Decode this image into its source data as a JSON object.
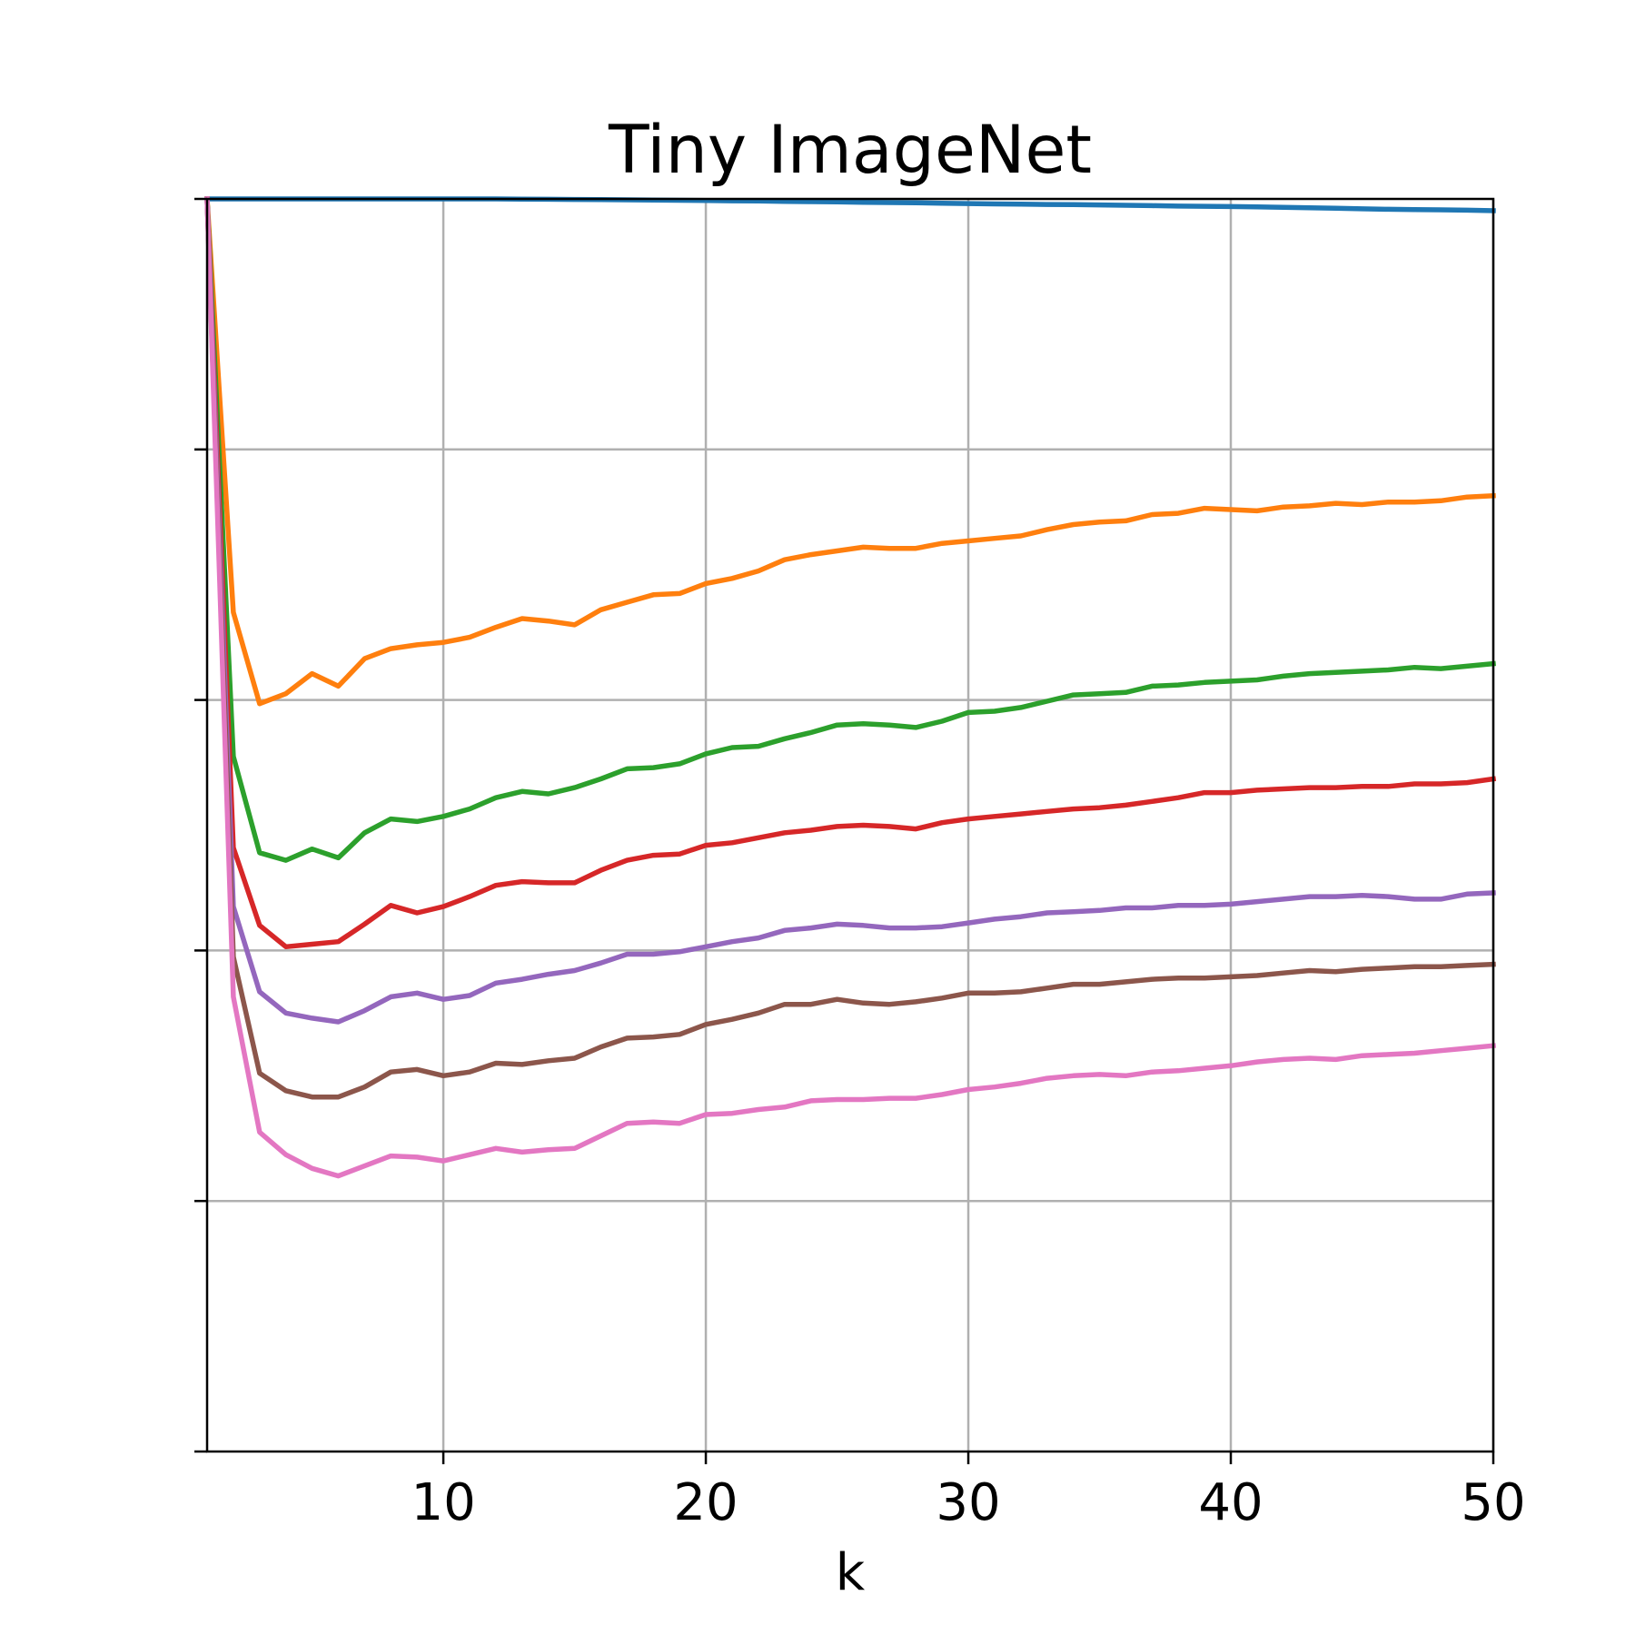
{
  "chart_data": {
    "type": "line",
    "title": "Tiny ImageNet",
    "xlabel": "k",
    "ylabel": "",
    "xlim": [
      1,
      50
    ],
    "ylim": [
      0,
      1
    ],
    "x_ticks": [
      10,
      20,
      30,
      40,
      50
    ],
    "y_ticks": [
      0,
      0.2,
      0.4,
      0.6,
      0.8,
      1.0
    ],
    "y_tick_labels_visible": false,
    "grid": true,
    "x": [
      1,
      2,
      3,
      4,
      5,
      6,
      7,
      8,
      9,
      10,
      11,
      12,
      13,
      14,
      15,
      16,
      17,
      18,
      19,
      20,
      21,
      22,
      23,
      24,
      25,
      26,
      27,
      28,
      29,
      30,
      31,
      32,
      33,
      34,
      35,
      36,
      37,
      38,
      39,
      40,
      41,
      42,
      43,
      44,
      45,
      46,
      47,
      48,
      49,
      50
    ],
    "series": [
      {
        "color": "#1f77b4",
        "values": [
          1.0,
          1.0,
          1.0,
          1.0,
          1.0,
          1.0,
          1.0,
          1.0,
          1.0,
          1.0,
          1.0,
          1.0,
          0.9998,
          0.9997,
          0.9996,
          0.9995,
          0.9993,
          0.9991,
          0.9989,
          0.9987,
          0.9985,
          0.9983,
          0.998,
          0.9978,
          0.9976,
          0.9973,
          0.9971,
          0.9969,
          0.9966,
          0.9963,
          0.996,
          0.9958,
          0.9956,
          0.9954,
          0.9952,
          0.9949,
          0.9946,
          0.9943,
          0.9941,
          0.9939,
          0.9936,
          0.9933,
          0.9929,
          0.9926,
          0.9921,
          0.9917,
          0.9915,
          0.9913,
          0.991,
          0.9906
        ]
      },
      {
        "color": "#ff7f0e",
        "values": [
          1.0,
          0.67,
          0.597,
          0.605,
          0.621,
          0.611,
          0.633,
          0.641,
          0.644,
          0.646,
          0.65,
          0.658,
          0.665,
          0.663,
          0.66,
          0.672,
          0.678,
          0.684,
          0.685,
          0.693,
          0.697,
          0.703,
          0.712,
          0.716,
          0.719,
          0.722,
          0.721,
          0.721,
          0.725,
          0.727,
          0.729,
          0.731,
          0.736,
          0.74,
          0.742,
          0.743,
          0.748,
          0.749,
          0.753,
          0.752,
          0.751,
          0.754,
          0.755,
          0.757,
          0.756,
          0.758,
          0.758,
          0.759,
          0.762,
          0.763
        ]
      },
      {
        "color": "#2ca02c",
        "values": [
          1.0,
          0.555,
          0.478,
          0.472,
          0.481,
          0.474,
          0.494,
          0.505,
          0.503,
          0.507,
          0.513,
          0.522,
          0.527,
          0.525,
          0.53,
          0.537,
          0.545,
          0.546,
          0.549,
          0.557,
          0.562,
          0.563,
          0.569,
          0.574,
          0.58,
          0.581,
          0.58,
          0.578,
          0.583,
          0.59,
          0.591,
          0.594,
          0.599,
          0.604,
          0.605,
          0.606,
          0.611,
          0.612,
          0.614,
          0.615,
          0.616,
          0.619,
          0.621,
          0.622,
          0.623,
          0.624,
          0.626,
          0.625,
          0.627,
          0.629
        ]
      },
      {
        "color": "#d62728",
        "values": [
          1.0,
          0.482,
          0.42,
          0.403,
          0.405,
          0.407,
          0.421,
          0.436,
          0.43,
          0.435,
          0.443,
          0.452,
          0.455,
          0.454,
          0.454,
          0.464,
          0.472,
          0.476,
          0.477,
          0.484,
          0.486,
          0.49,
          0.494,
          0.496,
          0.499,
          0.5,
          0.499,
          0.497,
          0.502,
          0.505,
          0.507,
          0.509,
          0.511,
          0.513,
          0.514,
          0.516,
          0.519,
          0.522,
          0.526,
          0.526,
          0.528,
          0.529,
          0.53,
          0.53,
          0.531,
          0.531,
          0.533,
          0.533,
          0.534,
          0.537
        ]
      },
      {
        "color": "#9467bd",
        "values": [
          1.0,
          0.435,
          0.367,
          0.35,
          0.346,
          0.343,
          0.352,
          0.363,
          0.366,
          0.361,
          0.364,
          0.374,
          0.377,
          0.381,
          0.384,
          0.39,
          0.397,
          0.397,
          0.399,
          0.403,
          0.407,
          0.41,
          0.416,
          0.418,
          0.421,
          0.42,
          0.418,
          0.418,
          0.419,
          0.422,
          0.425,
          0.427,
          0.43,
          0.431,
          0.432,
          0.434,
          0.434,
          0.436,
          0.436,
          0.437,
          0.439,
          0.441,
          0.443,
          0.443,
          0.444,
          0.443,
          0.441,
          0.441,
          0.445,
          0.446
        ]
      },
      {
        "color": "#8c564b",
        "values": [
          1.0,
          0.395,
          0.302,
          0.288,
          0.283,
          0.283,
          0.291,
          0.303,
          0.305,
          0.3,
          0.303,
          0.31,
          0.309,
          0.312,
          0.314,
          0.323,
          0.33,
          0.331,
          0.333,
          0.341,
          0.345,
          0.35,
          0.357,
          0.357,
          0.361,
          0.358,
          0.357,
          0.359,
          0.362,
          0.366,
          0.366,
          0.367,
          0.37,
          0.373,
          0.373,
          0.375,
          0.377,
          0.378,
          0.378,
          0.379,
          0.38,
          0.382,
          0.384,
          0.383,
          0.385,
          0.386,
          0.387,
          0.387,
          0.388,
          0.389
        ]
      },
      {
        "color": "#e377c2",
        "values": [
          1.0,
          0.363,
          0.255,
          0.237,
          0.226,
          0.22,
          0.228,
          0.236,
          0.235,
          0.232,
          0.237,
          0.242,
          0.239,
          0.241,
          0.242,
          0.252,
          0.262,
          0.263,
          0.262,
          0.269,
          0.27,
          0.273,
          0.275,
          0.28,
          0.281,
          0.281,
          0.282,
          0.282,
          0.285,
          0.289,
          0.291,
          0.294,
          0.298,
          0.3,
          0.301,
          0.3,
          0.303,
          0.304,
          0.306,
          0.308,
          0.311,
          0.313,
          0.314,
          0.313,
          0.316,
          0.317,
          0.318,
          0.32,
          0.322,
          0.324
        ]
      }
    ]
  }
}
